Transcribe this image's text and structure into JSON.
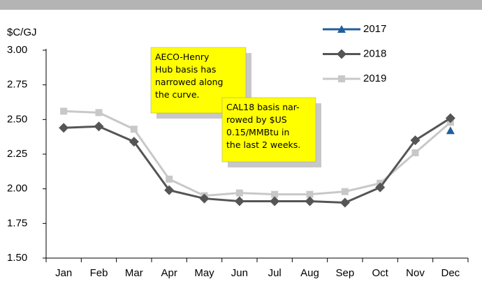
{
  "chart_data": {
    "type": "line",
    "y_axis_label": "$C/GJ",
    "categories": [
      "Jan",
      "Feb",
      "Mar",
      "Apr",
      "May",
      "Jun",
      "Jul",
      "Aug",
      "Sep",
      "Oct",
      "Nov",
      "Dec"
    ],
    "series": [
      {
        "name": "2017",
        "color": "#1f5f9b",
        "marker": "triangle",
        "values": [
          null,
          null,
          null,
          null,
          null,
          null,
          null,
          null,
          null,
          null,
          null,
          2.42
        ]
      },
      {
        "name": "2018",
        "color": "#555555",
        "marker": "diamond",
        "values": [
          2.44,
          2.45,
          2.34,
          1.99,
          1.93,
          1.91,
          1.91,
          1.91,
          1.9,
          2.01,
          2.35,
          2.51
        ]
      },
      {
        "name": "2019",
        "color": "#c8c8c8",
        "marker": "square",
        "values": [
          2.56,
          2.55,
          2.43,
          2.07,
          1.95,
          1.97,
          1.96,
          1.96,
          1.98,
          2.04,
          2.26,
          2.48
        ]
      }
    ],
    "ylim": [
      1.5,
      3.0
    ],
    "yticks": [
      {
        "value": 1.5,
        "label": "1.50"
      },
      {
        "value": 1.75,
        "label": "1.75"
      },
      {
        "value": 2,
        "label": "2.00"
      },
      {
        "value": 2.25,
        "label": "2.25"
      },
      {
        "value": 2.5,
        "label": "2.50"
      },
      {
        "value": 2.75,
        "label": "2.75"
      },
      {
        "value": 3,
        "label": "3.00"
      }
    ],
    "grid": false,
    "legend": "top-right",
    "annotations": [
      {
        "lines": [
          "AECO-Henry",
          "Hub basis has",
          "narrowed along",
          "the curve."
        ]
      },
      {
        "lines": [
          "CAL18 basis nar-",
          "rowed by $US",
          "0.15/MMBtu in",
          "the last 2 weeks."
        ]
      }
    ]
  }
}
